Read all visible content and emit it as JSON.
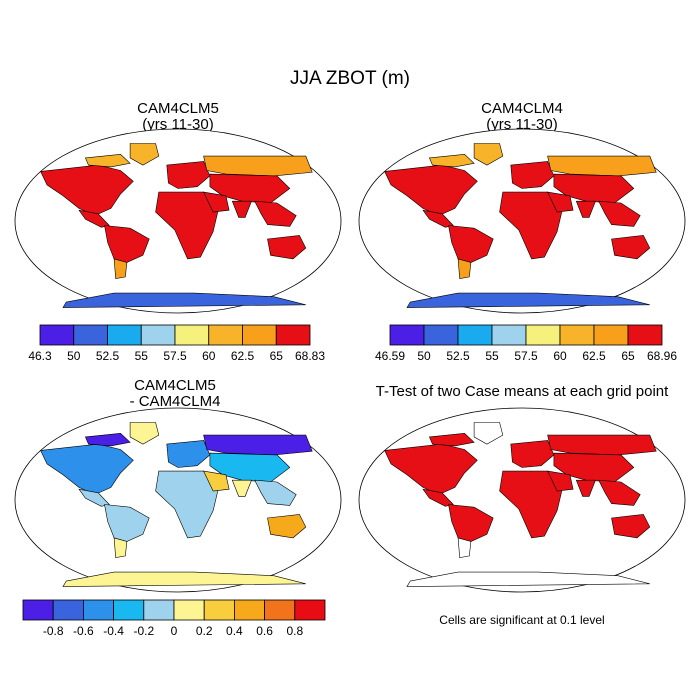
{
  "title": "JJA ZBOT (m)",
  "colors": {
    "abs_palette": [
      "#4b1fe6",
      "#3a63de",
      "#19aaf0",
      "#9fd2ec",
      "#f6f07c",
      "#f7b32a",
      "#f8a01b",
      "#e50f15",
      "#d32f30"
    ],
    "diff_palette": [
      "#4b1fe6",
      "#3a63de",
      "#2d90ea",
      "#19b8f0",
      "#9fd2ec",
      "#fdf593",
      "#f8cd3e",
      "#f6a91a",
      "#f1731b",
      "#e80d14",
      "#d32f30"
    ],
    "ocean": "#ffffff",
    "ttest_significant": "#e50f15"
  },
  "chart_data": [
    {
      "type": "heatmap",
      "projection": "robinson",
      "title": "CAM4CLM5",
      "subtitle": "(yrs 11-30)",
      "colorbar": {
        "tick_labels": [
          "46.3",
          "50",
          "52.5",
          "55",
          "57.5",
          "60",
          "62.5",
          "65",
          "68.83"
        ],
        "boundaries": [
          46.3,
          50,
          52.5,
          55,
          57.5,
          60,
          62.5,
          65,
          68.83
        ]
      },
      "regions": [
        {
          "region": "North America",
          "value": 66
        },
        {
          "region": "Central America",
          "value": 67
        },
        {
          "region": "Canadian Arctic",
          "value": 62
        },
        {
          "region": "Greenland",
          "value": 60
        },
        {
          "region": "South America",
          "value": 66
        },
        {
          "region": "Patagonia",
          "value": 63
        },
        {
          "region": "Europe",
          "value": 65
        },
        {
          "region": "Siberia",
          "value": 63
        },
        {
          "region": "Asia",
          "value": 66
        },
        {
          "region": "Africa",
          "value": 67
        },
        {
          "region": "Arabia",
          "value": 67
        },
        {
          "region": "India",
          "value": 67
        },
        {
          "region": "Southeast Asia",
          "value": 67
        },
        {
          "region": "Australia",
          "value": 66
        },
        {
          "region": "Antarctica",
          "value": 50
        }
      ]
    },
    {
      "type": "heatmap",
      "projection": "robinson",
      "title": "CAM4CLM4",
      "subtitle": "(yrs 11-30)",
      "colorbar": {
        "tick_labels": [
          "46.59",
          "50",
          "52.5",
          "55",
          "57.5",
          "60",
          "62.5",
          "65",
          "68.96"
        ],
        "boundaries": [
          46.59,
          50,
          52.5,
          55,
          57.5,
          60,
          62.5,
          65,
          68.96
        ]
      },
      "regions": [
        {
          "region": "North America",
          "value": 66
        },
        {
          "region": "Central America",
          "value": 67
        },
        {
          "region": "Canadian Arctic",
          "value": 62
        },
        {
          "region": "Greenland",
          "value": 60
        },
        {
          "region": "South America",
          "value": 66
        },
        {
          "region": "Patagonia",
          "value": 63
        },
        {
          "region": "Europe",
          "value": 65
        },
        {
          "region": "Siberia",
          "value": 64
        },
        {
          "region": "Asia",
          "value": 66
        },
        {
          "region": "Africa",
          "value": 67
        },
        {
          "region": "Arabia",
          "value": 67
        },
        {
          "region": "India",
          "value": 67
        },
        {
          "region": "Southeast Asia",
          "value": 67
        },
        {
          "region": "Australia",
          "value": 66
        },
        {
          "region": "Antarctica",
          "value": 50
        }
      ]
    },
    {
      "type": "heatmap",
      "projection": "robinson",
      "title": "CAM4CLM5",
      "subtitle": "- CAM4CLM4",
      "colorbar": {
        "tick_labels": [
          "-0.8",
          "-0.6",
          "-0.4",
          "-0.2",
          "0",
          "0.2",
          "0.4",
          "0.6",
          "0.8"
        ],
        "boundaries": [
          -1.0,
          -0.8,
          -0.6,
          -0.4,
          -0.2,
          0,
          0.2,
          0.4,
          0.6,
          0.8,
          1.0
        ]
      },
      "regions": [
        {
          "region": "North America",
          "value": -0.5
        },
        {
          "region": "Central America",
          "value": -0.1
        },
        {
          "region": "Canadian Arctic",
          "value": -0.9
        },
        {
          "region": "Greenland",
          "value": 0.1
        },
        {
          "region": "South America",
          "value": -0.2
        },
        {
          "region": "Patagonia",
          "value": 0.1
        },
        {
          "region": "Europe",
          "value": -0.5
        },
        {
          "region": "Siberia",
          "value": -0.9
        },
        {
          "region": "Asia",
          "value": -0.3
        },
        {
          "region": "Africa",
          "value": -0.1
        },
        {
          "region": "Arabia",
          "value": 0.3
        },
        {
          "region": "India",
          "value": 0.1
        },
        {
          "region": "Southeast Asia",
          "value": -0.2
        },
        {
          "region": "Australia",
          "value": 0.5
        },
        {
          "region": "Antarctica",
          "value": 0.1
        }
      ]
    },
    {
      "type": "heatmap",
      "projection": "robinson",
      "title": "T-Test of two Case means at each grid point",
      "footnote": "Cells are significant at 0.1 level",
      "regions": [
        {
          "region": "North America",
          "significant": true
        },
        {
          "region": "Central America",
          "significant": true
        },
        {
          "region": "Canadian Arctic",
          "significant": true
        },
        {
          "region": "Greenland",
          "significant": false
        },
        {
          "region": "South America",
          "significant": true
        },
        {
          "region": "Patagonia",
          "significant": false
        },
        {
          "region": "Europe",
          "significant": true
        },
        {
          "region": "Siberia",
          "significant": true
        },
        {
          "region": "Asia",
          "significant": true
        },
        {
          "region": "Africa",
          "significant": true
        },
        {
          "region": "Arabia",
          "significant": true
        },
        {
          "region": "India",
          "significant": true
        },
        {
          "region": "Southeast Asia",
          "significant": true
        },
        {
          "region": "Australia",
          "significant": true
        },
        {
          "region": "Antarctica",
          "significant": false
        }
      ]
    }
  ]
}
